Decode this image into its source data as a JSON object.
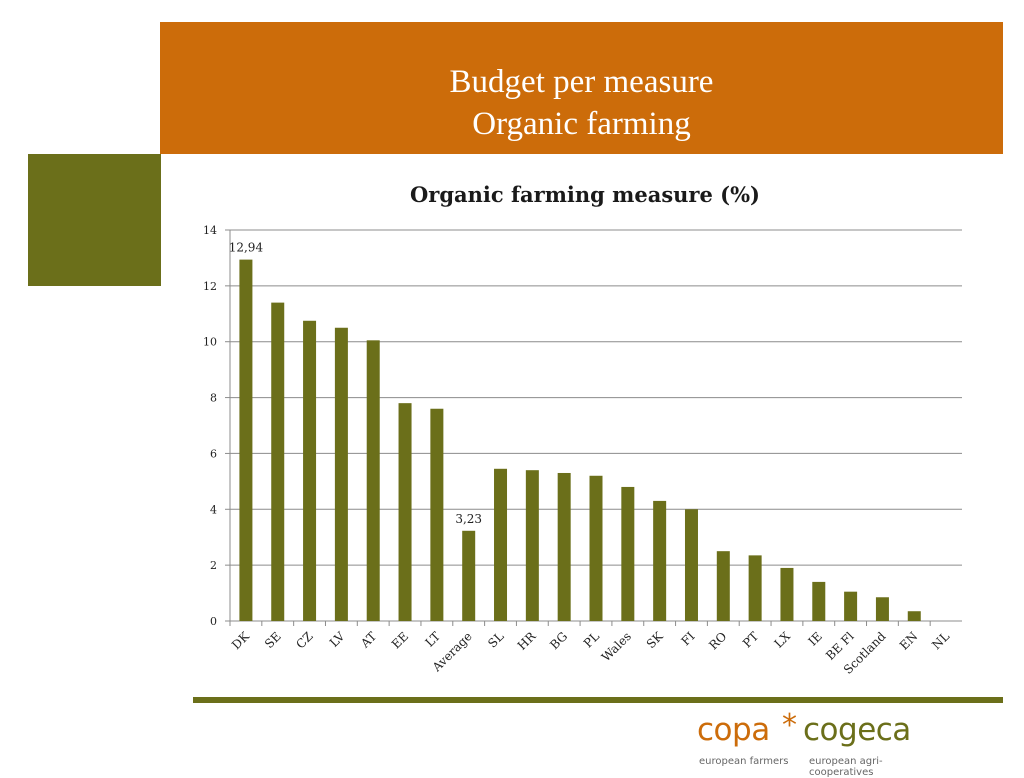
{
  "slide": {
    "title_line1": "Budget per measure",
    "title_line2": "Organic farming",
    "colors": {
      "header": "#cc6c0a",
      "accent_green": "#6b6f1a"
    }
  },
  "logo": {
    "left_word": "copa",
    "star": "*",
    "right_word": "cogeca",
    "left_tagline": "european farmers",
    "right_tagline": "european agri-cooperatives"
  },
  "chart_data": {
    "type": "bar",
    "title": "Organic farming measure (%)",
    "xlabel": "",
    "ylabel": "",
    "ylim": [
      0,
      14
    ],
    "yticks": [
      0,
      2,
      4,
      6,
      8,
      10,
      12,
      14
    ],
    "grid": true,
    "bar_color": "#6b6f1a",
    "categories": [
      "DK",
      "SE",
      "CZ",
      "LV",
      "AT",
      "EE",
      "LT",
      "Average",
      "SL",
      "HR",
      "BG",
      "PL",
      "Wales",
      "SK",
      "FI",
      "RO",
      "PT",
      "LX",
      "IE",
      "BE Fl",
      "Scotland",
      "EN",
      "NL"
    ],
    "values": [
      12.94,
      11.4,
      10.75,
      10.5,
      10.05,
      7.8,
      7.6,
      3.23,
      5.45,
      5.4,
      5.3,
      5.2,
      4.8,
      4.3,
      4.0,
      2.5,
      2.35,
      1.9,
      1.4,
      1.05,
      0.85,
      0.35,
      0
    ],
    "data_labels": [
      {
        "category": "DK",
        "text": "12,94"
      },
      {
        "category": "Average",
        "text": "3,23"
      }
    ]
  }
}
